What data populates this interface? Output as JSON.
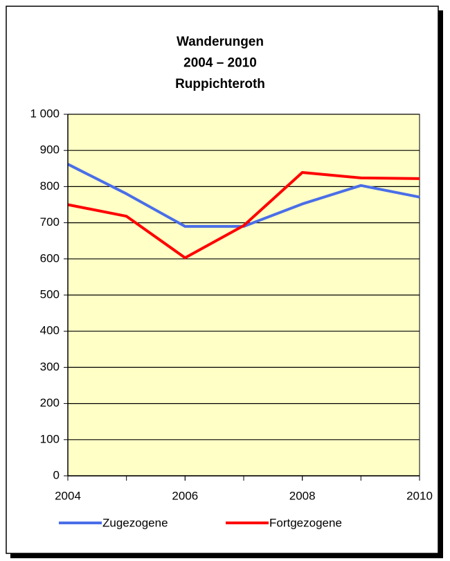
{
  "chart_data": {
    "type": "line",
    "title": [
      "Wanderungen",
      "2004 – 2010",
      "Ruppichteroth"
    ],
    "x": [
      2004,
      2005,
      2006,
      2007,
      2008,
      2009,
      2010
    ],
    "series": [
      {
        "name": "Zugezogene",
        "color": "#4a6ee8",
        "values": [
          862,
          780,
          690,
          690,
          752,
          803,
          771
        ]
      },
      {
        "name": "Fortgezogene",
        "color": "#ff0000",
        "values": [
          750,
          718,
          603,
          692,
          839,
          824,
          822
        ]
      }
    ],
    "xlim": [
      2004,
      2010
    ],
    "xticks": [
      2004,
      2006,
      2008,
      2010
    ],
    "ylim": [
      0,
      1000
    ],
    "yticks": [
      0,
      100,
      200,
      300,
      400,
      500,
      600,
      700,
      800,
      900,
      {
        "value": 1000,
        "label": "1 000"
      }
    ],
    "grid": true,
    "plot_background": "#ffffc6",
    "legend": "bottom"
  }
}
